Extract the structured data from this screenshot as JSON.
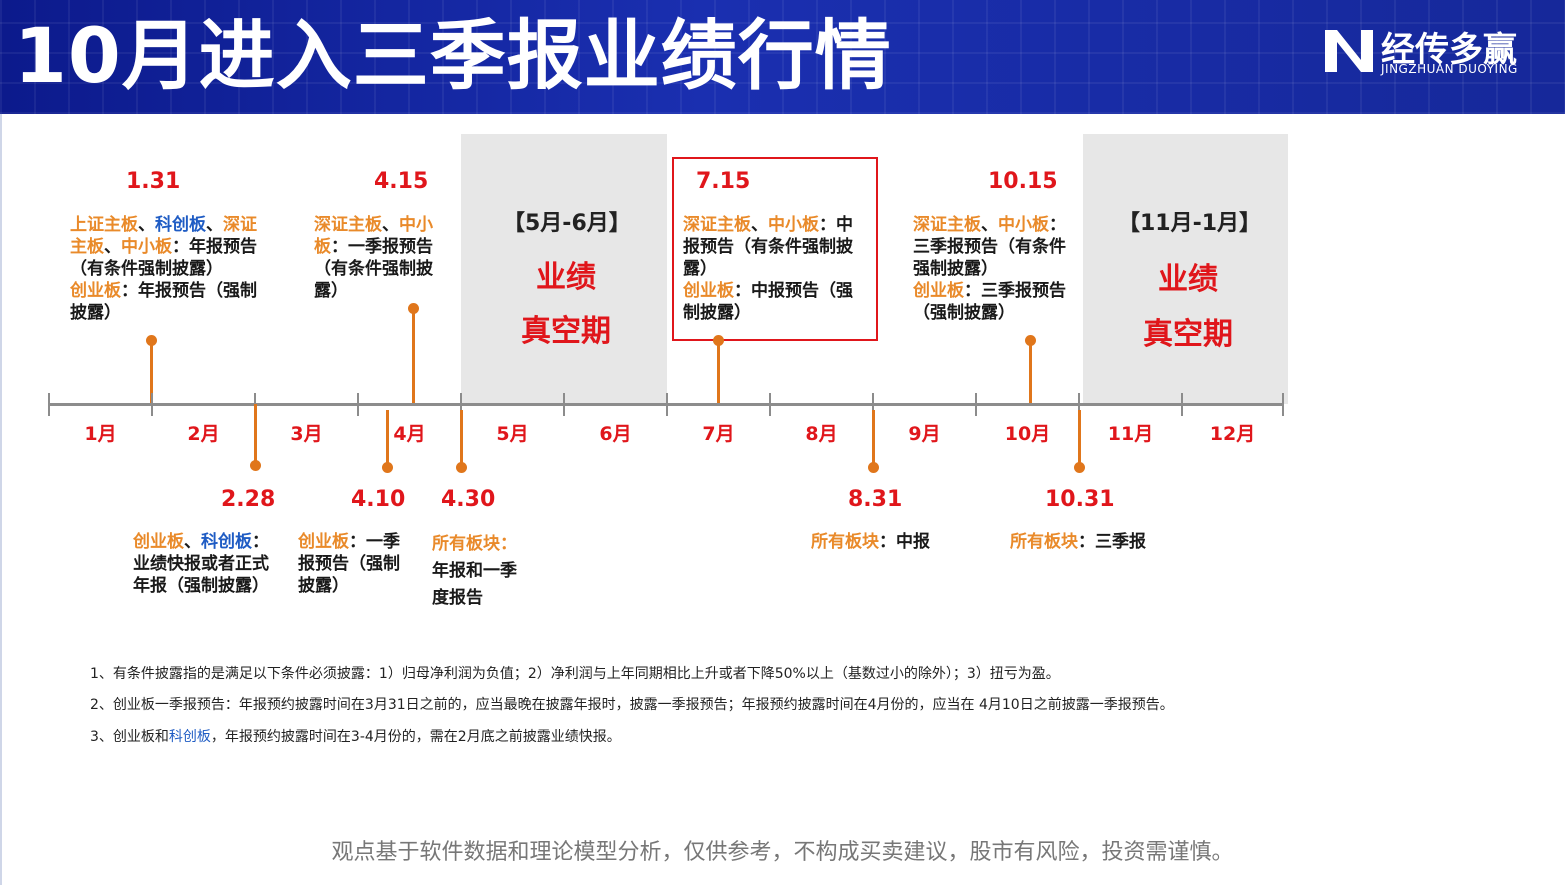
{
  "header": {
    "title": "10月进入三季报业绩行情",
    "logo_cn": "经传多赢",
    "logo_en": "JINGZHUAN DUOYING",
    "logo_icon": "jingzhuan-logo-icon"
  },
  "periods": [
    {
      "label": "【5月-6月】",
      "big1": "业绩",
      "big2": "真空期"
    },
    {
      "label": "【11月-1月】",
      "big1": "业绩",
      "big2": "真空期"
    }
  ],
  "months": [
    "1月",
    "2月",
    "3月",
    "4月",
    "5月",
    "6月",
    "7月",
    "8月",
    "9月",
    "10月",
    "11月",
    "12月"
  ],
  "events_top": [
    {
      "date": "1.31",
      "segs": [
        [
          "上证主板",
          "or"
        ],
        [
          "、",
          ""
        ],
        [
          "科创板",
          "bl"
        ],
        [
          "、",
          ""
        ],
        [
          "深证主板",
          "or"
        ],
        [
          "、",
          ""
        ],
        [
          "中小板",
          "or"
        ],
        [
          "：年报预告（有条件强制披露）",
          ""
        ],
        [
          "\n",
          ""
        ],
        [
          "创业板",
          "or"
        ],
        [
          "：年报预告（强制披露）",
          ""
        ]
      ]
    },
    {
      "date": "4.15",
      "segs": [
        [
          "深证主板",
          "or"
        ],
        [
          "、",
          ""
        ],
        [
          "中小板",
          "or"
        ],
        [
          "：一季报预告（有条件强制披露）",
          ""
        ]
      ]
    },
    {
      "date": "7.15",
      "segs": [
        [
          "深证主板",
          "or"
        ],
        [
          "、",
          ""
        ],
        [
          "中小板",
          "or"
        ],
        [
          "：中报预告（有条件强制披露）",
          ""
        ],
        [
          "\n",
          ""
        ],
        [
          "创业板",
          "or"
        ],
        [
          "：中报预告（强制披露）",
          ""
        ]
      ]
    },
    {
      "date": "10.15",
      "segs": [
        [
          "深证主板",
          "or"
        ],
        [
          "、",
          ""
        ],
        [
          "中小板",
          "or"
        ],
        [
          "：",
          ""
        ],
        [
          "\n",
          ""
        ],
        [
          "三季报预告（有条件强制披露）",
          ""
        ],
        [
          "\n",
          ""
        ],
        [
          "创业板",
          "or"
        ],
        [
          "：三季报预告（强制披露）",
          ""
        ]
      ]
    }
  ],
  "events_bottom": [
    {
      "date": "2.28",
      "segs": [
        [
          "创业板",
          "or"
        ],
        [
          "、",
          ""
        ],
        [
          "科创板",
          "bl"
        ],
        [
          "：",
          ""
        ],
        [
          "\n",
          ""
        ],
        [
          "业绩快报或者正式年报（强制披露）",
          ""
        ]
      ]
    },
    {
      "date": "4.10",
      "segs": [
        [
          "创业板",
          "or"
        ],
        [
          "：一季报预告（强制披露）",
          ""
        ]
      ]
    },
    {
      "date": "4.30",
      "segs": [
        [
          "所有板块：",
          "or"
        ],
        [
          "\n",
          ""
        ],
        [
          "年报和一季度报告",
          ""
        ]
      ]
    },
    {
      "date": "8.31",
      "segs": [
        [
          "所有板块",
          "or"
        ],
        [
          "：中报",
          ""
        ]
      ]
    },
    {
      "date": "10.31",
      "segs": [
        [
          "所有板块",
          "or"
        ],
        [
          "：三季报",
          ""
        ]
      ]
    }
  ],
  "footnotes": [
    {
      "segs": [
        [
          "1、有条件披露指的是满足以下条件必须披露：1）归母净利润为负值；2）净利润与上年同期相比上升或者下降50%以上（基数过小的除外）；3）扭亏为盈。",
          ""
        ]
      ]
    },
    {
      "segs": [
        [
          "2、创业板一季报预告：年报预约披露时间在3月31日之前的，应当最晚在披露年报时，披露一季报预告；年报预约披露时间在4月份的，应当在 4月10日之前披露一季报预告。",
          ""
        ]
      ]
    },
    {
      "segs": [
        [
          "3、创业板和",
          ""
        ],
        [
          "科创板",
          "bl"
        ],
        [
          "，年报预约披露时间在3-4月份的，需在2月底之前披露业绩快报。",
          ""
        ]
      ]
    }
  ],
  "disclaimer": "观点基于软件数据和理论模型分析，仅供参考，不构成买卖建议，股市有风险，投资需谨慎。",
  "colors": {
    "accent_red": "#e0161b",
    "orange": "#e98a2a",
    "blue": "#1f5cc4",
    "header_blue": "#1a2fb0"
  }
}
